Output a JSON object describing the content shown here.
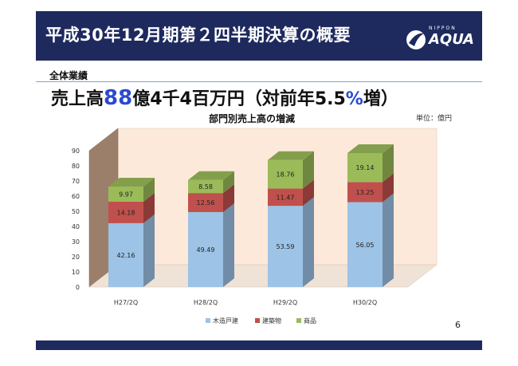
{
  "header": {
    "title": "平成30年12月期第２四半期決算の概要"
  },
  "logo": {
    "top_text": "NIPPON",
    "main_text": "AQUA"
  },
  "section": {
    "label": "全体業績"
  },
  "headline": {
    "prefix": "売上高",
    "highlight": "88",
    "middle": "億4千4百万円（対前年5.5",
    "pct_sign": "%",
    "suffix": "増）"
  },
  "unit": "単位：億円",
  "page_number": "6",
  "colors": {
    "header_bg": "#1e2a5e",
    "wood": "#9dc3e6",
    "building": "#c0504d",
    "goods": "#9bbb59",
    "backwall": "#fde9d9"
  },
  "chart_data": {
    "type": "bar",
    "stacked": true,
    "title": "部門別売上高の増減",
    "categories": [
      "H27/2Q",
      "H28/2Q",
      "H29/2Q",
      "H30/2Q"
    ],
    "series": [
      {
        "name": "木造戸建",
        "values": [
          42.16,
          49.49,
          53.59,
          56.05
        ]
      },
      {
        "name": "建築物",
        "values": [
          14.18,
          12.56,
          11.47,
          13.25
        ]
      },
      {
        "name": "商品",
        "values": [
          9.97,
          8.58,
          18.76,
          19.14
        ]
      }
    ],
    "ylim": [
      0,
      90
    ],
    "yticks": [
      0,
      10,
      20,
      30,
      40,
      50,
      60,
      70,
      80,
      90
    ],
    "legend": "bottom"
  }
}
